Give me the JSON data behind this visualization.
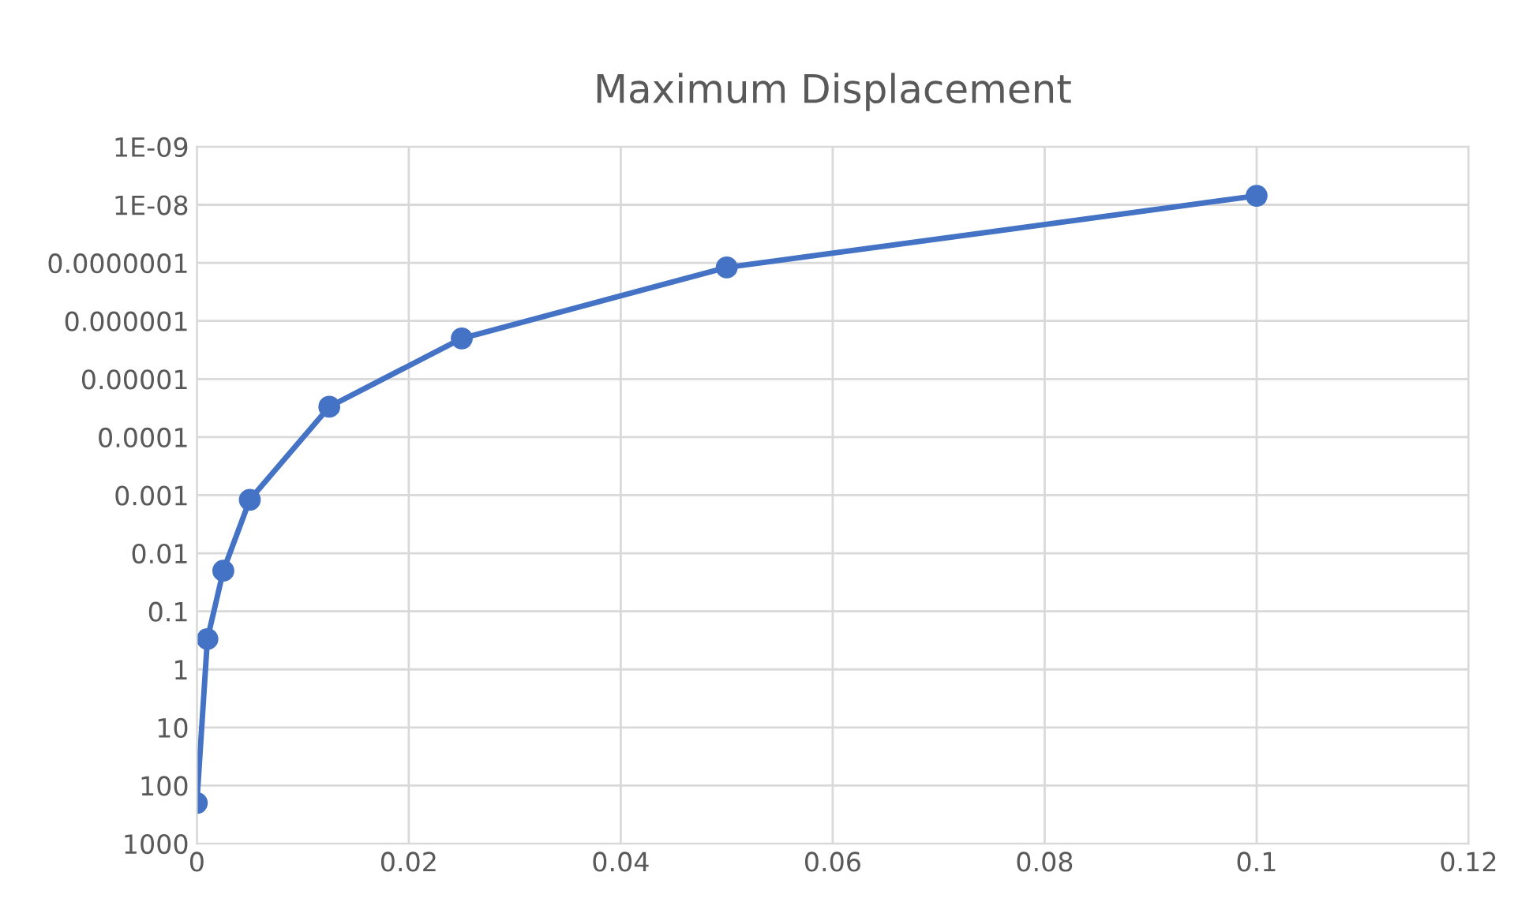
{
  "chart_data": {
    "type": "line",
    "title": "Maximum Displacement",
    "x": [
      0,
      0.001,
      0.0025,
      0.005,
      0.0125,
      0.025,
      0.05,
      0.1
    ],
    "series": [
      {
        "color": "#4472c4",
        "values": [
          200,
          0.3,
          0.02,
          0.0012,
          3e-05,
          2e-06,
          1.2e-07,
          7e-09
        ]
      }
    ],
    "log": "y",
    "xlim": [
      0,
      0.12
    ],
    "xticks": [
      0,
      0.02,
      0.04,
      0.06,
      0.08,
      0.1,
      0.12
    ],
    "ylim": [
      1000,
      1e-09
    ],
    "yticks": [
      {
        "value": 1e-09,
        "label": "1E-09"
      },
      {
        "value": 1e-08,
        "label": "1E-08"
      },
      {
        "value": 1e-07,
        "label": "0.0000001"
      },
      {
        "value": 1e-06,
        "label": "0.000001"
      },
      {
        "value": 1e-05,
        "label": "0.00001"
      },
      0.0001,
      0.001,
      0.01,
      0.1,
      1,
      10,
      100,
      1000
    ],
    "grid": true,
    "marker": "circle",
    "line_style": "solid",
    "legend": false
  }
}
